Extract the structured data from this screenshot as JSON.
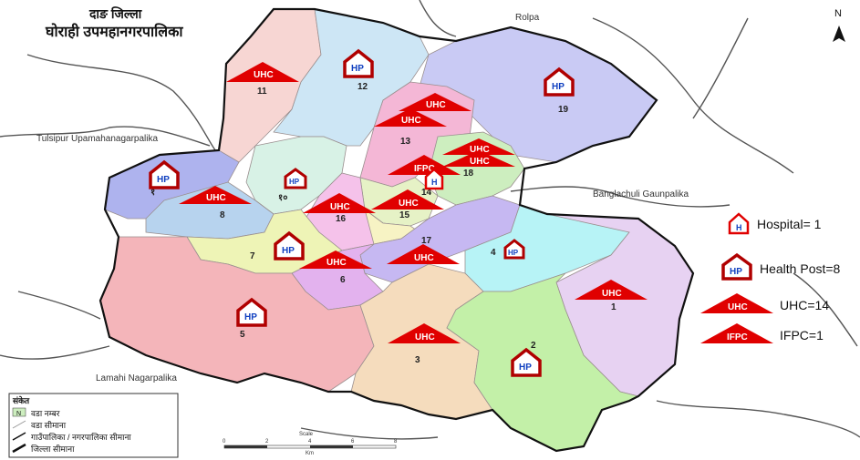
{
  "title": {
    "district": "दाङ जिल्ला",
    "municipality": "घोराही उपमहानगरपालिका"
  },
  "neighbors": {
    "north": "Rolpa",
    "west": "Tulsipur Upamahanagarpalika",
    "east": "Banglachuli Gaunpalika",
    "south": "Lamahi Nagarpalika"
  },
  "north_arrow": "N",
  "wards": [
    {
      "label": "11"
    },
    {
      "label": "12"
    },
    {
      "label": "19"
    },
    {
      "label": "13"
    },
    {
      "label": "18"
    },
    {
      "label": "१"
    },
    {
      "label": "१०"
    },
    {
      "label": "14"
    },
    {
      "label": "8"
    },
    {
      "label": "16"
    },
    {
      "label": "15"
    },
    {
      "label": "17"
    },
    {
      "label": "4"
    },
    {
      "label": "7"
    },
    {
      "label": "6"
    },
    {
      "label": "1"
    },
    {
      "label": "5"
    },
    {
      "label": "3"
    },
    {
      "label": "2"
    }
  ],
  "facilities": {
    "uhc": "UHC",
    "hp": "HP",
    "ifpc": "IFPC",
    "hospital": "H"
  },
  "legend": {
    "hospital": "Hospital= 1",
    "health_post": "Health Post=8",
    "uhc": "UHC=14",
    "ifpc": "IFPC=1",
    "colors": {
      "red": "#e00000",
      "hp_blue": "#1040c0"
    }
  },
  "key": {
    "title": "संकेत",
    "items": [
      "वडा नम्बर",
      "वडा सीमाना",
      "गाउँपालिका / नगरपालिका सीमाना",
      "जिल्ला सीमाना"
    ],
    "ward_symbol": "N"
  },
  "scale": {
    "label": "Scale",
    "ticks": [
      "0",
      "2",
      "4",
      "6",
      "8"
    ],
    "unit": "Km"
  }
}
